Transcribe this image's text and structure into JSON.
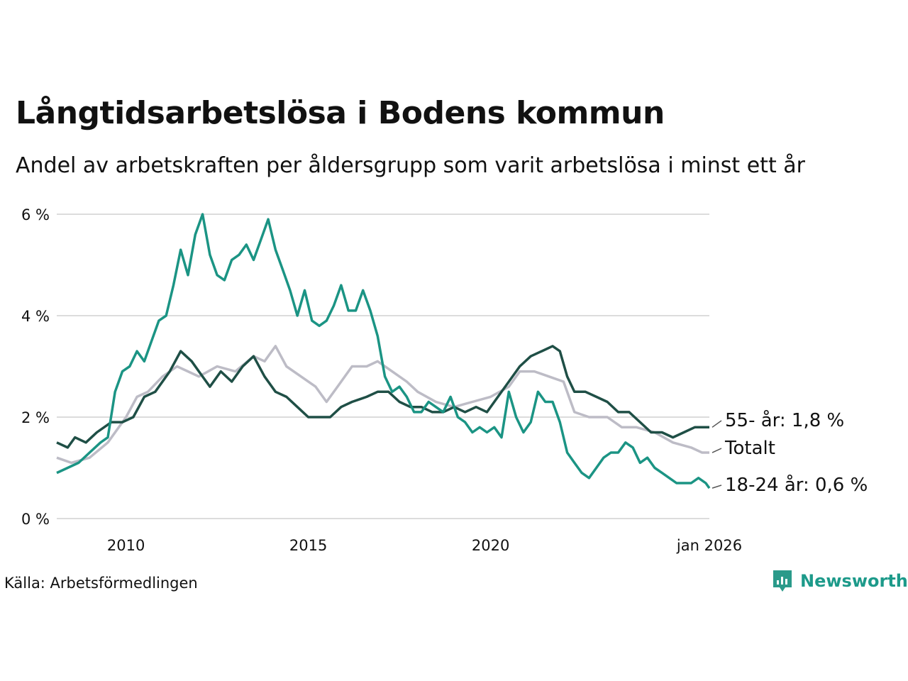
{
  "title": "Långtidsarbetslösa i Bodens kommun",
  "subtitle": "Andel av arbetskraften per åldersgrupp som varit arbetslösa i minst ett år",
  "source": "Källa: Arbetsförmedlingen",
  "brand": {
    "name": "Newsworthy",
    "icon": "newsworthy-logo-icon",
    "color": "#2a9a8a"
  },
  "chart_data": {
    "type": "line",
    "title": "Långtidsarbetslösa i Bodens kommun",
    "xlabel": "",
    "ylabel": "",
    "xlim": [
      2008.1,
      2026.0
    ],
    "ylim": [
      0,
      6
    ],
    "y_ticks": [
      0,
      2,
      4,
      6
    ],
    "y_tick_labels": [
      "0 %",
      "2 %",
      "4 %",
      "6 %"
    ],
    "x_ticks": [
      2010,
      2015,
      2020,
      2026
    ],
    "x_tick_labels": [
      "2010",
      "2015",
      "2020",
      "jan 2026"
    ],
    "grid": true,
    "series": [
      {
        "name": "Totalt",
        "label": "Totalt",
        "color": "#bdbcc6",
        "points": [
          [
            2008.1,
            1.2
          ],
          [
            2008.5,
            1.1
          ],
          [
            2009.0,
            1.2
          ],
          [
            2009.5,
            1.5
          ],
          [
            2010.0,
            2.0
          ],
          [
            2010.3,
            2.4
          ],
          [
            2010.6,
            2.5
          ],
          [
            2011.0,
            2.8
          ],
          [
            2011.4,
            3.0
          ],
          [
            2011.7,
            2.9
          ],
          [
            2012.0,
            2.8
          ],
          [
            2012.5,
            3.0
          ],
          [
            2013.0,
            2.9
          ],
          [
            2013.5,
            3.2
          ],
          [
            2013.8,
            3.1
          ],
          [
            2014.1,
            3.4
          ],
          [
            2014.4,
            3.0
          ],
          [
            2014.8,
            2.8
          ],
          [
            2015.2,
            2.6
          ],
          [
            2015.5,
            2.3
          ],
          [
            2015.8,
            2.6
          ],
          [
            2016.2,
            3.0
          ],
          [
            2016.6,
            3.0
          ],
          [
            2016.9,
            3.1
          ],
          [
            2017.3,
            2.9
          ],
          [
            2017.7,
            2.7
          ],
          [
            2018.0,
            2.5
          ],
          [
            2018.5,
            2.3
          ],
          [
            2019.0,
            2.2
          ],
          [
            2019.5,
            2.3
          ],
          [
            2020.0,
            2.4
          ],
          [
            2020.5,
            2.6
          ],
          [
            2020.8,
            2.9
          ],
          [
            2021.2,
            2.9
          ],
          [
            2021.6,
            2.8
          ],
          [
            2022.0,
            2.7
          ],
          [
            2022.3,
            2.1
          ],
          [
            2022.7,
            2.0
          ],
          [
            2023.2,
            2.0
          ],
          [
            2023.6,
            1.8
          ],
          [
            2024.0,
            1.8
          ],
          [
            2024.5,
            1.7
          ],
          [
            2025.0,
            1.5
          ],
          [
            2025.5,
            1.4
          ],
          [
            2025.8,
            1.3
          ],
          [
            2026.0,
            1.3
          ]
        ]
      },
      {
        "name": "55- år",
        "label": "55- år: 1,8 %",
        "color": "#1f4f46",
        "points": [
          [
            2008.1,
            1.5
          ],
          [
            2008.4,
            1.4
          ],
          [
            2008.6,
            1.6
          ],
          [
            2008.9,
            1.5
          ],
          [
            2009.2,
            1.7
          ],
          [
            2009.6,
            1.9
          ],
          [
            2009.9,
            1.9
          ],
          [
            2010.2,
            2.0
          ],
          [
            2010.5,
            2.4
          ],
          [
            2010.8,
            2.5
          ],
          [
            2011.2,
            2.9
          ],
          [
            2011.5,
            3.3
          ],
          [
            2011.8,
            3.1
          ],
          [
            2012.0,
            2.9
          ],
          [
            2012.3,
            2.6
          ],
          [
            2012.6,
            2.9
          ],
          [
            2012.9,
            2.7
          ],
          [
            2013.2,
            3.0
          ],
          [
            2013.5,
            3.2
          ],
          [
            2013.8,
            2.8
          ],
          [
            2014.1,
            2.5
          ],
          [
            2014.4,
            2.4
          ],
          [
            2014.7,
            2.2
          ],
          [
            2015.0,
            2.0
          ],
          [
            2015.3,
            2.0
          ],
          [
            2015.6,
            2.0
          ],
          [
            2015.9,
            2.2
          ],
          [
            2016.2,
            2.3
          ],
          [
            2016.6,
            2.4
          ],
          [
            2016.9,
            2.5
          ],
          [
            2017.2,
            2.5
          ],
          [
            2017.5,
            2.3
          ],
          [
            2017.8,
            2.2
          ],
          [
            2018.1,
            2.2
          ],
          [
            2018.4,
            2.1
          ],
          [
            2018.7,
            2.1
          ],
          [
            2019.0,
            2.2
          ],
          [
            2019.3,
            2.1
          ],
          [
            2019.6,
            2.2
          ],
          [
            2019.9,
            2.1
          ],
          [
            2020.2,
            2.4
          ],
          [
            2020.5,
            2.7
          ],
          [
            2020.8,
            3.0
          ],
          [
            2021.1,
            3.2
          ],
          [
            2021.4,
            3.3
          ],
          [
            2021.7,
            3.4
          ],
          [
            2021.9,
            3.3
          ],
          [
            2022.1,
            2.8
          ],
          [
            2022.3,
            2.5
          ],
          [
            2022.6,
            2.5
          ],
          [
            2022.9,
            2.4
          ],
          [
            2023.2,
            2.3
          ],
          [
            2023.5,
            2.1
          ],
          [
            2023.8,
            2.1
          ],
          [
            2024.1,
            1.9
          ],
          [
            2024.4,
            1.7
          ],
          [
            2024.7,
            1.7
          ],
          [
            2025.0,
            1.6
          ],
          [
            2025.3,
            1.7
          ],
          [
            2025.6,
            1.8
          ],
          [
            2025.8,
            1.8
          ],
          [
            2026.0,
            1.8
          ]
        ]
      },
      {
        "name": "18-24 år",
        "label": "18-24 år: 0,6 %",
        "color": "#1b9484",
        "points": [
          [
            2008.1,
            0.9
          ],
          [
            2008.4,
            1.0
          ],
          [
            2008.7,
            1.1
          ],
          [
            2009.0,
            1.3
          ],
          [
            2009.3,
            1.5
          ],
          [
            2009.5,
            1.6
          ],
          [
            2009.7,
            2.5
          ],
          [
            2009.9,
            2.9
          ],
          [
            2010.1,
            3.0
          ],
          [
            2010.3,
            3.3
          ],
          [
            2010.5,
            3.1
          ],
          [
            2010.7,
            3.5
          ],
          [
            2010.9,
            3.9
          ],
          [
            2011.1,
            4.0
          ],
          [
            2011.3,
            4.6
          ],
          [
            2011.5,
            5.3
          ],
          [
            2011.7,
            4.8
          ],
          [
            2011.9,
            5.6
          ],
          [
            2012.1,
            6.0
          ],
          [
            2012.3,
            5.2
          ],
          [
            2012.5,
            4.8
          ],
          [
            2012.7,
            4.7
          ],
          [
            2012.9,
            5.1
          ],
          [
            2013.1,
            5.2
          ],
          [
            2013.3,
            5.4
          ],
          [
            2013.5,
            5.1
          ],
          [
            2013.7,
            5.5
          ],
          [
            2013.9,
            5.9
          ],
          [
            2014.1,
            5.3
          ],
          [
            2014.3,
            4.9
          ],
          [
            2014.5,
            4.5
          ],
          [
            2014.7,
            4.0
          ],
          [
            2014.9,
            4.5
          ],
          [
            2015.1,
            3.9
          ],
          [
            2015.3,
            3.8
          ],
          [
            2015.5,
            3.9
          ],
          [
            2015.7,
            4.2
          ],
          [
            2015.9,
            4.6
          ],
          [
            2016.1,
            4.1
          ],
          [
            2016.3,
            4.1
          ],
          [
            2016.5,
            4.5
          ],
          [
            2016.7,
            4.1
          ],
          [
            2016.9,
            3.6
          ],
          [
            2017.1,
            2.8
          ],
          [
            2017.3,
            2.5
          ],
          [
            2017.5,
            2.6
          ],
          [
            2017.7,
            2.4
          ],
          [
            2017.9,
            2.1
          ],
          [
            2018.1,
            2.1
          ],
          [
            2018.3,
            2.3
          ],
          [
            2018.5,
            2.2
          ],
          [
            2018.7,
            2.1
          ],
          [
            2018.9,
            2.4
          ],
          [
            2019.1,
            2.0
          ],
          [
            2019.3,
            1.9
          ],
          [
            2019.5,
            1.7
          ],
          [
            2019.7,
            1.8
          ],
          [
            2019.9,
            1.7
          ],
          [
            2020.1,
            1.8
          ],
          [
            2020.3,
            1.6
          ],
          [
            2020.5,
            2.5
          ],
          [
            2020.7,
            2.0
          ],
          [
            2020.9,
            1.7
          ],
          [
            2021.1,
            1.9
          ],
          [
            2021.3,
            2.5
          ],
          [
            2021.5,
            2.3
          ],
          [
            2021.7,
            2.3
          ],
          [
            2021.9,
            1.9
          ],
          [
            2022.1,
            1.3
          ],
          [
            2022.3,
            1.1
          ],
          [
            2022.5,
            0.9
          ],
          [
            2022.7,
            0.8
          ],
          [
            2022.9,
            1.0
          ],
          [
            2023.1,
            1.2
          ],
          [
            2023.3,
            1.3
          ],
          [
            2023.5,
            1.3
          ],
          [
            2023.7,
            1.5
          ],
          [
            2023.9,
            1.4
          ],
          [
            2024.1,
            1.1
          ],
          [
            2024.3,
            1.2
          ],
          [
            2024.5,
            1.0
          ],
          [
            2024.7,
            0.9
          ],
          [
            2024.9,
            0.8
          ],
          [
            2025.1,
            0.7
          ],
          [
            2025.3,
            0.7
          ],
          [
            2025.5,
            0.7
          ],
          [
            2025.7,
            0.8
          ],
          [
            2025.9,
            0.7
          ],
          [
            2026.0,
            0.6
          ]
        ]
      }
    ]
  }
}
